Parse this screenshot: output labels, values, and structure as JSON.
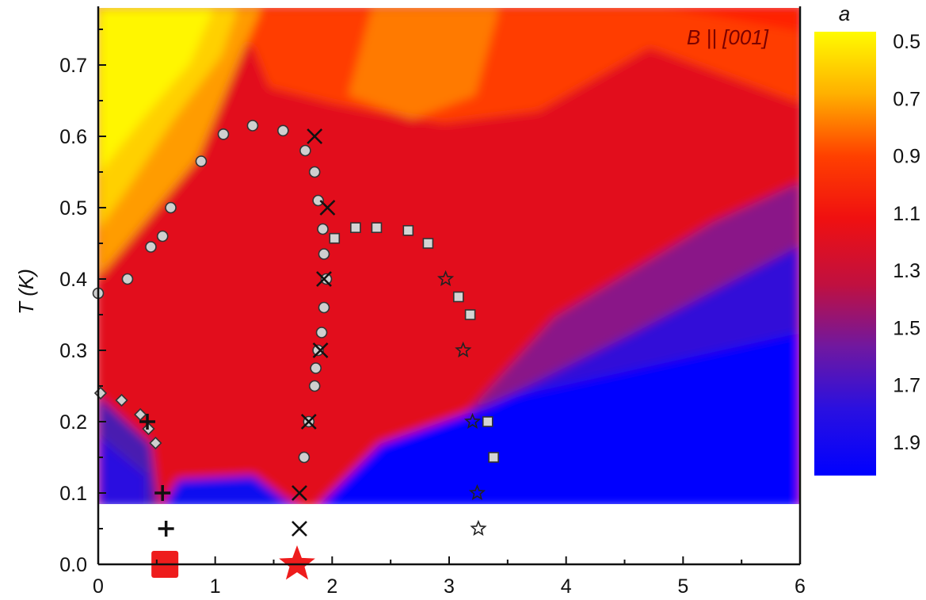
{
  "chart_data": {
    "type": "heatmap",
    "annotation": "B || [001]",
    "xlabel": "",
    "ylabel": "T (K)",
    "xlim": [
      0,
      6
    ],
    "ylim": [
      0,
      0.78
    ],
    "x_ticks": [
      "0",
      "1",
      "2",
      "3",
      "4",
      "5",
      "6"
    ],
    "y_ticks": [
      "0.0",
      "0.1",
      "0.2",
      "0.3",
      "0.4",
      "0.5",
      "0.6",
      "0.7"
    ],
    "colorbar": {
      "label": "a",
      "ticks": [
        "0.5",
        "0.7",
        "0.9",
        "1.1",
        "1.3",
        "1.5",
        "1.7",
        "1.9"
      ],
      "range": [
        0.5,
        2.0
      ],
      "colors": [
        "#fffb00",
        "#ff9a00",
        "#ff2200",
        "#e8101a",
        "#b01050",
        "#6018a0",
        "#2010e0",
        "#0000ff"
      ]
    },
    "heatmap_min_T": 0.085,
    "series": [
      {
        "marker": "circle",
        "points": [
          [
            0.0,
            0.38
          ],
          [
            0.25,
            0.4
          ],
          [
            0.45,
            0.445
          ],
          [
            0.55,
            0.46
          ],
          [
            0.62,
            0.5
          ],
          [
            0.88,
            0.565
          ],
          [
            1.07,
            0.603
          ],
          [
            1.32,
            0.615
          ],
          [
            1.58,
            0.608
          ],
          [
            1.77,
            0.58
          ],
          [
            1.85,
            0.55
          ],
          [
            1.88,
            0.51
          ],
          [
            1.92,
            0.47
          ],
          [
            1.93,
            0.435
          ],
          [
            1.95,
            0.4
          ],
          [
            1.93,
            0.36
          ],
          [
            1.91,
            0.325
          ],
          [
            1.88,
            0.3
          ],
          [
            1.86,
            0.275
          ],
          [
            1.85,
            0.25
          ],
          [
            1.8,
            0.2
          ],
          [
            1.76,
            0.15
          ]
        ]
      },
      {
        "marker": "diamond",
        "points": [
          [
            0.02,
            0.24
          ],
          [
            0.2,
            0.23
          ],
          [
            0.36,
            0.21
          ],
          [
            0.43,
            0.19
          ],
          [
            0.49,
            0.17
          ]
        ]
      },
      {
        "marker": "square",
        "points": [
          [
            2.02,
            0.457
          ],
          [
            2.2,
            0.472
          ],
          [
            2.38,
            0.472
          ],
          [
            2.65,
            0.468
          ],
          [
            2.82,
            0.45
          ],
          [
            3.08,
            0.375
          ],
          [
            3.18,
            0.35
          ],
          [
            3.33,
            0.2
          ],
          [
            3.38,
            0.15
          ]
        ]
      },
      {
        "marker": "cross",
        "points": [
          [
            1.85,
            0.6
          ],
          [
            1.96,
            0.5
          ],
          [
            1.93,
            0.4
          ],
          [
            1.9,
            0.3
          ],
          [
            1.8,
            0.2
          ],
          [
            1.72,
            0.1
          ],
          [
            1.72,
            0.05
          ]
        ]
      },
      {
        "marker": "plus",
        "points": [
          [
            0.42,
            0.2
          ],
          [
            0.55,
            0.1
          ],
          [
            0.58,
            0.05
          ]
        ]
      },
      {
        "marker": "star",
        "points": [
          [
            2.97,
            0.4
          ],
          [
            3.12,
            0.3
          ],
          [
            3.2,
            0.2
          ],
          [
            3.24,
            0.1
          ],
          [
            3.25,
            0.05
          ]
        ]
      }
    ],
    "special_markers": [
      {
        "marker": "filled-square",
        "x": 0.57,
        "y": 0.0,
        "color": "#ee1c1c"
      },
      {
        "marker": "filled-star",
        "x": 1.7,
        "y": 0.0,
        "color": "#ee1c1c"
      }
    ]
  }
}
